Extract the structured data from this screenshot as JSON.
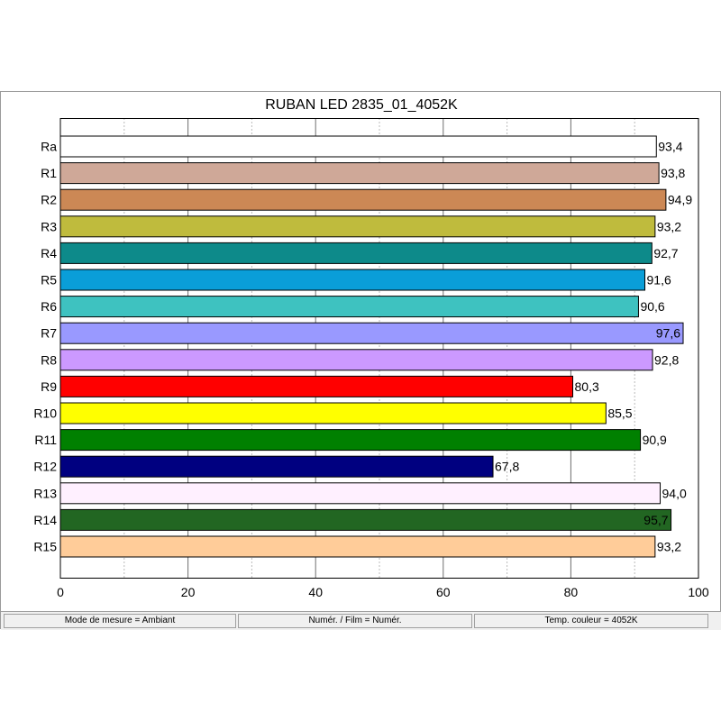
{
  "chart_data": {
    "type": "bar",
    "orientation": "horizontal",
    "title": "RUBAN LED 2835_01_4052K",
    "xlabel": "",
    "ylabel": "",
    "xlim": [
      0,
      100
    ],
    "xticks": [
      0,
      20,
      40,
      60,
      80,
      100
    ],
    "minor_gridlines": [
      10,
      30,
      50,
      70,
      90
    ],
    "grid": true,
    "categories": [
      "Ra",
      "R1",
      "R2",
      "R3",
      "R4",
      "R5",
      "R6",
      "R7",
      "R8",
      "R9",
      "R10",
      "R11",
      "R12",
      "R13",
      "R14",
      "R15"
    ],
    "values": [
      93.4,
      93.8,
      94.9,
      93.2,
      92.7,
      91.6,
      90.6,
      97.6,
      92.8,
      80.3,
      85.5,
      90.9,
      67.8,
      94.0,
      95.7,
      93.2
    ],
    "value_labels": [
      "93,4",
      "93,8",
      "94,9",
      "93,2",
      "92,7",
      "91,6",
      "90,6",
      "97,6",
      "92,8",
      "80,3",
      "85,5",
      "90,9",
      "67,8",
      "94,0",
      "95,7",
      "93,2"
    ],
    "colors": [
      "#ffffff",
      "#cfa898",
      "#cc8855",
      "#bfbb3d",
      "#0d8a8a",
      "#0a9ed8",
      "#3ec2c0",
      "#9999ff",
      "#cc99ff",
      "#ff0000",
      "#ffff00",
      "#008000",
      "#000080",
      "#fff0ff",
      "#226622",
      "#ffcc99"
    ]
  },
  "status_bar": {
    "mode": "Mode de mesure = Ambiant",
    "numer": "Numér. / Film = Numér.",
    "temp": "Temp. couleur = 4052K"
  }
}
